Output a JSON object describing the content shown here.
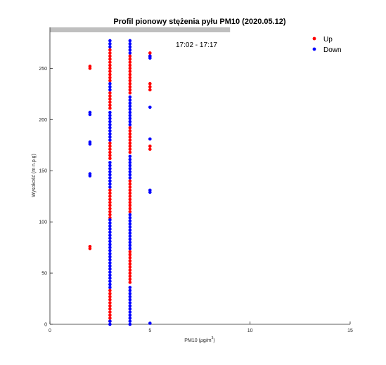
{
  "chart_data": {
    "type": "scatter",
    "title": "Profil pionowy stężenia pyłu PM10 (2020.05.12)",
    "xlabel": "PM10 (µg/m³)",
    "xlabel_main": "PM10 (",
    "xlabel_mu": "µ",
    "xlabel_unit": "g/m",
    "xlabel_sup": "3",
    "xlabel_close": ")",
    "ylabel": "Wysokość (m n.p.g)",
    "xlim": [
      0,
      15
    ],
    "ylim": [
      0,
      290
    ],
    "x_ticks": [
      0,
      5,
      10,
      15
    ],
    "y_ticks": [
      0,
      50,
      100,
      150,
      200,
      250
    ],
    "x_tick_labels": [
      "0",
      "5",
      "10",
      "15"
    ],
    "y_tick_labels": [
      "0",
      "50",
      "100",
      "150",
      "200",
      "250"
    ],
    "grid": false,
    "legend_position": "top-right",
    "annotation": "17:02 - 17:17",
    "progress_bar": {
      "x_end": 9,
      "color": "#bfbfbf"
    },
    "series": [
      {
        "name": "Up",
        "color": "#ff0000",
        "points": [
          [
            2,
            74
          ],
          [
            2,
            76
          ],
          [
            2,
            250
          ],
          [
            2,
            252
          ],
          [
            3,
            3
          ],
          [
            3,
            6
          ],
          [
            3,
            9
          ],
          [
            3,
            12
          ],
          [
            3,
            15
          ],
          [
            3,
            18
          ],
          [
            3,
            21
          ],
          [
            3,
            24
          ],
          [
            3,
            27
          ],
          [
            3,
            30
          ],
          [
            3,
            33
          ],
          [
            3,
            104
          ],
          [
            3,
            107
          ],
          [
            3,
            110
          ],
          [
            3,
            113
          ],
          [
            3,
            116
          ],
          [
            3,
            119
          ],
          [
            3,
            122
          ],
          [
            3,
            125
          ],
          [
            3,
            128
          ],
          [
            3,
            131
          ],
          [
            3,
            162
          ],
          [
            3,
            165
          ],
          [
            3,
            168
          ],
          [
            3,
            171
          ],
          [
            3,
            174
          ],
          [
            3,
            177
          ],
          [
            3,
            211
          ],
          [
            3,
            214
          ],
          [
            3,
            217
          ],
          [
            3,
            220
          ],
          [
            3,
            223
          ],
          [
            3,
            226
          ],
          [
            3,
            238
          ],
          [
            3,
            241
          ],
          [
            3,
            244
          ],
          [
            3,
            247
          ],
          [
            3,
            250
          ],
          [
            3,
            253
          ],
          [
            3,
            256
          ],
          [
            3,
            259
          ],
          [
            3,
            262
          ],
          [
            3,
            265
          ],
          [
            3,
            268
          ],
          [
            4,
            41
          ],
          [
            4,
            44
          ],
          [
            4,
            47
          ],
          [
            4,
            50
          ],
          [
            4,
            53
          ],
          [
            4,
            56
          ],
          [
            4,
            59
          ],
          [
            4,
            62
          ],
          [
            4,
            65
          ],
          [
            4,
            68
          ],
          [
            4,
            71
          ],
          [
            4,
            110
          ],
          [
            4,
            113
          ],
          [
            4,
            116
          ],
          [
            4,
            119
          ],
          [
            4,
            122
          ],
          [
            4,
            125
          ],
          [
            4,
            128
          ],
          [
            4,
            131
          ],
          [
            4,
            134
          ],
          [
            4,
            137
          ],
          [
            4,
            140
          ],
          [
            4,
            168
          ],
          [
            4,
            171
          ],
          [
            4,
            174
          ],
          [
            4,
            177
          ],
          [
            4,
            180
          ],
          [
            4,
            183
          ],
          [
            4,
            186
          ],
          [
            4,
            189
          ],
          [
            4,
            192
          ],
          [
            4,
            226
          ],
          [
            4,
            229
          ],
          [
            4,
            232
          ],
          [
            4,
            235
          ],
          [
            4,
            238
          ],
          [
            4,
            241
          ],
          [
            4,
            244
          ],
          [
            4,
            247
          ],
          [
            4,
            250
          ],
          [
            4,
            253
          ],
          [
            4,
            256
          ],
          [
            4,
            259
          ],
          [
            4,
            262
          ],
          [
            5,
            171
          ],
          [
            5,
            174
          ],
          [
            5,
            229
          ],
          [
            5,
            232
          ],
          [
            5,
            235
          ],
          [
            5,
            262
          ],
          [
            5,
            265
          ]
        ]
      },
      {
        "name": "Down",
        "color": "#0000ff",
        "points": [
          [
            2,
            145
          ],
          [
            2,
            147
          ],
          [
            2,
            176
          ],
          [
            2,
            178
          ],
          [
            2,
            205
          ],
          [
            2,
            207
          ],
          [
            3,
            0
          ],
          [
            3,
            3
          ],
          [
            3,
            36
          ],
          [
            3,
            39
          ],
          [
            3,
            42
          ],
          [
            3,
            45
          ],
          [
            3,
            48
          ],
          [
            3,
            51
          ],
          [
            3,
            54
          ],
          [
            3,
            57
          ],
          [
            3,
            60
          ],
          [
            3,
            63
          ],
          [
            3,
            66
          ],
          [
            3,
            69
          ],
          [
            3,
            72
          ],
          [
            3,
            75
          ],
          [
            3,
            78
          ],
          [
            3,
            81
          ],
          [
            3,
            84
          ],
          [
            3,
            87
          ],
          [
            3,
            90
          ],
          [
            3,
            93
          ],
          [
            3,
            96
          ],
          [
            3,
            99
          ],
          [
            3,
            102
          ],
          [
            3,
            134
          ],
          [
            3,
            137
          ],
          [
            3,
            140
          ],
          [
            3,
            143
          ],
          [
            3,
            146
          ],
          [
            3,
            149
          ],
          [
            3,
            152
          ],
          [
            3,
            155
          ],
          [
            3,
            158
          ],
          [
            3,
            180
          ],
          [
            3,
            183
          ],
          [
            3,
            186
          ],
          [
            3,
            189
          ],
          [
            3,
            192
          ],
          [
            3,
            195
          ],
          [
            3,
            198
          ],
          [
            3,
            201
          ],
          [
            3,
            204
          ],
          [
            3,
            207
          ],
          [
            3,
            229
          ],
          [
            3,
            232
          ],
          [
            3,
            235
          ],
          [
            3,
            271
          ],
          [
            3,
            274
          ],
          [
            3,
            277
          ],
          [
            4,
            0
          ],
          [
            4,
            3
          ],
          [
            4,
            6
          ],
          [
            4,
            9
          ],
          [
            4,
            12
          ],
          [
            4,
            15
          ],
          [
            4,
            18
          ],
          [
            4,
            21
          ],
          [
            4,
            24
          ],
          [
            4,
            27
          ],
          [
            4,
            30
          ],
          [
            4,
            33
          ],
          [
            4,
            36
          ],
          [
            4,
            74
          ],
          [
            4,
            77
          ],
          [
            4,
            80
          ],
          [
            4,
            83
          ],
          [
            4,
            86
          ],
          [
            4,
            89
          ],
          [
            4,
            92
          ],
          [
            4,
            95
          ],
          [
            4,
            98
          ],
          [
            4,
            101
          ],
          [
            4,
            104
          ],
          [
            4,
            107
          ],
          [
            4,
            143
          ],
          [
            4,
            146
          ],
          [
            4,
            149
          ],
          [
            4,
            152
          ],
          [
            4,
            155
          ],
          [
            4,
            158
          ],
          [
            4,
            161
          ],
          [
            4,
            164
          ],
          [
            4,
            195
          ],
          [
            4,
            198
          ],
          [
            4,
            201
          ],
          [
            4,
            204
          ],
          [
            4,
            207
          ],
          [
            4,
            210
          ],
          [
            4,
            213
          ],
          [
            4,
            216
          ],
          [
            4,
            219
          ],
          [
            4,
            222
          ],
          [
            4,
            265
          ],
          [
            4,
            268
          ],
          [
            4,
            271
          ],
          [
            4,
            274
          ],
          [
            4,
            277
          ],
          [
            5,
            1
          ],
          [
            5,
            129
          ],
          [
            5,
            131
          ],
          [
            5,
            181
          ],
          [
            5,
            212
          ],
          [
            5,
            260
          ],
          [
            5,
            262
          ]
        ]
      }
    ]
  }
}
